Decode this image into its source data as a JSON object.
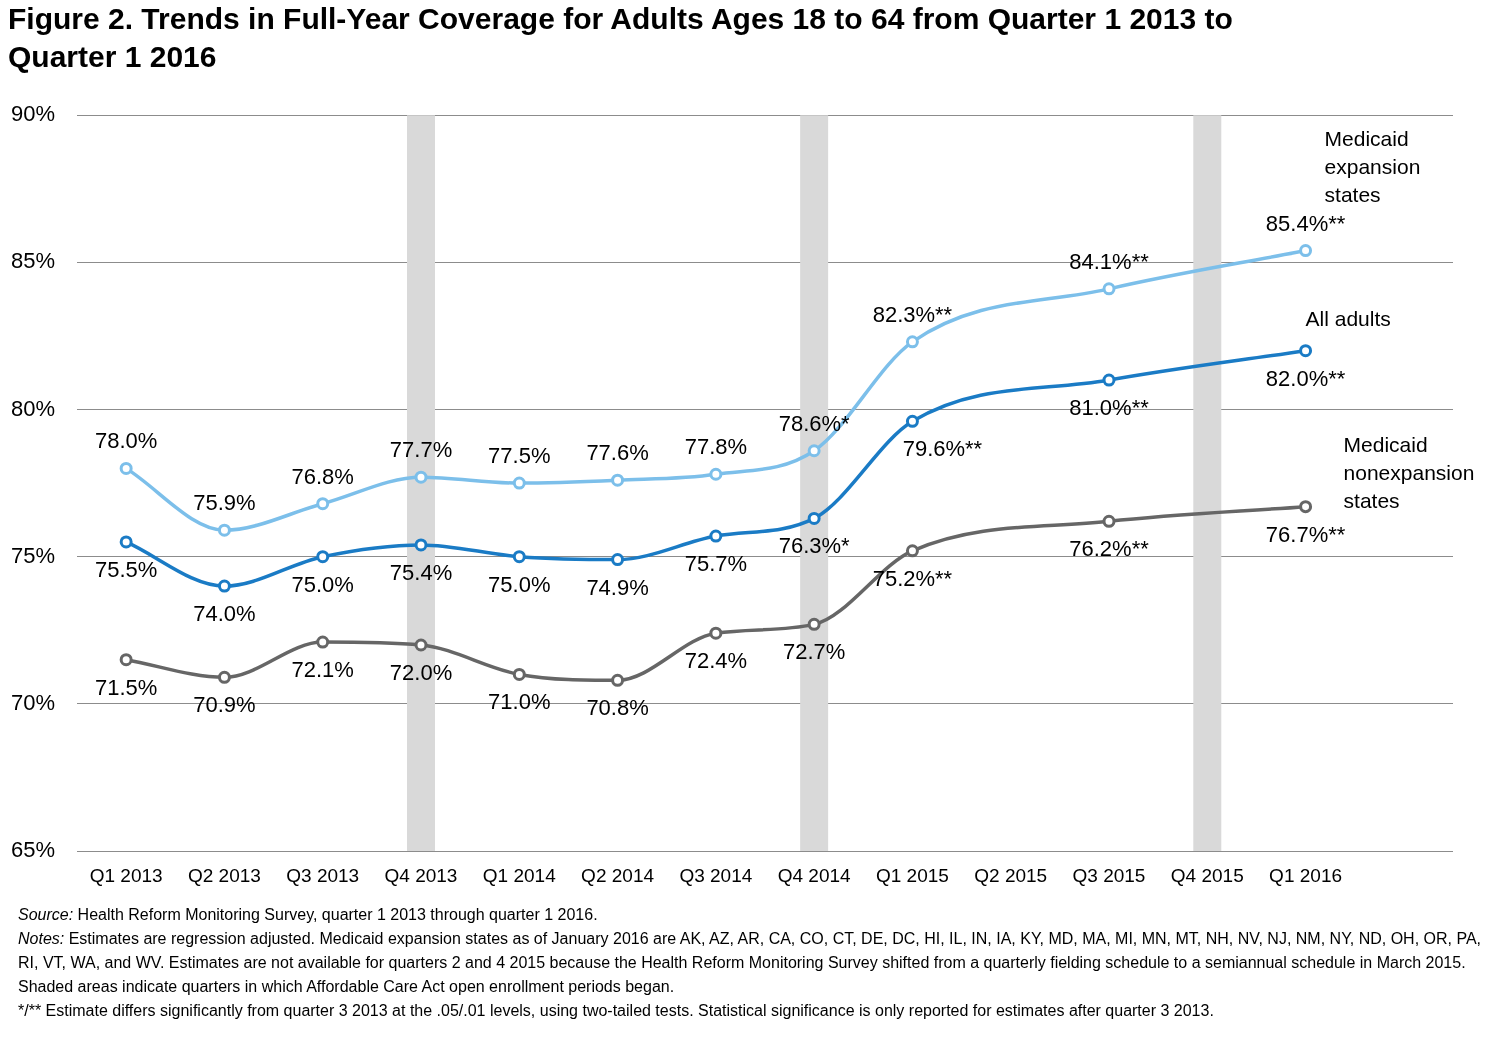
{
  "chart_data": {
    "type": "line",
    "title": "Figure 2. Trends in Full-Year Coverage for Adults Ages 18 to 64 from Quarter 1 2013 to Quarter 1 2016",
    "categories": [
      "Q1 2013",
      "Q2 2013",
      "Q3 2013",
      "Q4 2013",
      "Q1 2014",
      "Q2 2014",
      "Q3 2014",
      "Q4 2014",
      "Q1 2015",
      "Q2 2015",
      "Q3 2015",
      "Q4 2015",
      "Q1 2016"
    ],
    "series": [
      {
        "name": "Medicaid expansion states",
        "color": "#7cbfea",
        "values": [
          78.0,
          75.9,
          76.8,
          77.7,
          77.5,
          77.6,
          77.8,
          78.6,
          82.3,
          null,
          84.1,
          null,
          85.4
        ],
        "value_labels": [
          "78.0%",
          "75.9%",
          "76.8%",
          "77.7%",
          "77.5%",
          "77.6%",
          "77.8%",
          "78.6%*",
          "82.3%**",
          null,
          "84.1%**",
          null,
          "85.4%**"
        ]
      },
      {
        "name": "All adults",
        "color": "#1a7bc5",
        "values": [
          75.5,
          74.0,
          75.0,
          75.4,
          75.0,
          74.9,
          75.7,
          76.3,
          79.6,
          null,
          81.0,
          null,
          82.0
        ],
        "value_labels": [
          "75.5%",
          "74.0%",
          "75.0%",
          "75.4%",
          "75.0%",
          "74.9%",
          "75.7%",
          "76.3%*",
          "79.6%**",
          null,
          "81.0%**",
          null,
          "82.0%**"
        ]
      },
      {
        "name": "Medicaid nonexpansion states",
        "color": "#666666",
        "values": [
          71.5,
          70.9,
          72.1,
          72.0,
          71.0,
          70.8,
          72.4,
          72.7,
          75.2,
          null,
          76.2,
          null,
          76.7
        ],
        "value_labels": [
          "71.5%",
          "70.9%",
          "72.1%",
          "72.0%",
          "71.0%",
          "70.8%",
          "72.4%",
          "72.7%",
          "75.2%**",
          null,
          "76.2%**",
          null,
          "76.7%**"
        ]
      }
    ],
    "ylim": [
      65,
      90
    ],
    "yticks": [
      {
        "value": 65,
        "label": "65%"
      },
      {
        "value": 70,
        "label": "70%"
      },
      {
        "value": 75,
        "label": "75%"
      },
      {
        "value": 80,
        "label": "80%"
      },
      {
        "value": 85,
        "label": "85%"
      },
      {
        "value": 90,
        "label": "90%"
      }
    ],
    "bands": [
      {
        "axis": "x",
        "from": "Q4 2013",
        "to": "Q4 2013",
        "color": "#d9d9d9"
      },
      {
        "axis": "x",
        "from": "Q4 2014",
        "to": "Q4 2014",
        "color": "#d9d9d9"
      },
      {
        "axis": "x",
        "from": "Q4 2015",
        "to": "Q4 2015",
        "color": "#d9d9d9"
      }
    ],
    "grid": "y",
    "legend": false,
    "marker": "circle",
    "line_style": "solid",
    "annotations": [
      "Source: Health Reform Monitoring Survey, quarter 1 2013 through quarter 1 2016.",
      "Notes: Estimates are regression adjusted. Medicaid expansion states as of January 2016 are AK, AZ, AR, CA, CO, CT, DE, DC, HI, IL, IN, IA, KY, MD, MA, MI, MN, MT, NH, NV, NJ, NM, NY, ND, OH, OR, PA, RI, VT, WA, and WV. Estimates are not available for quarters 2 and 4 2015 because the Health Reform Monitoring Survey shifted from a quarterly fielding schedule to a semiannual schedule in March 2015. Shaded areas indicate quarters in which Affordable Care Act open enrollment periods began.",
      "*/** Estimate differs significantly from quarter 3 2013 at the .05/.01 levels, using two-tailed tests. Statistical significance is only reported for estimates after quarter 3 2013."
    ]
  }
}
